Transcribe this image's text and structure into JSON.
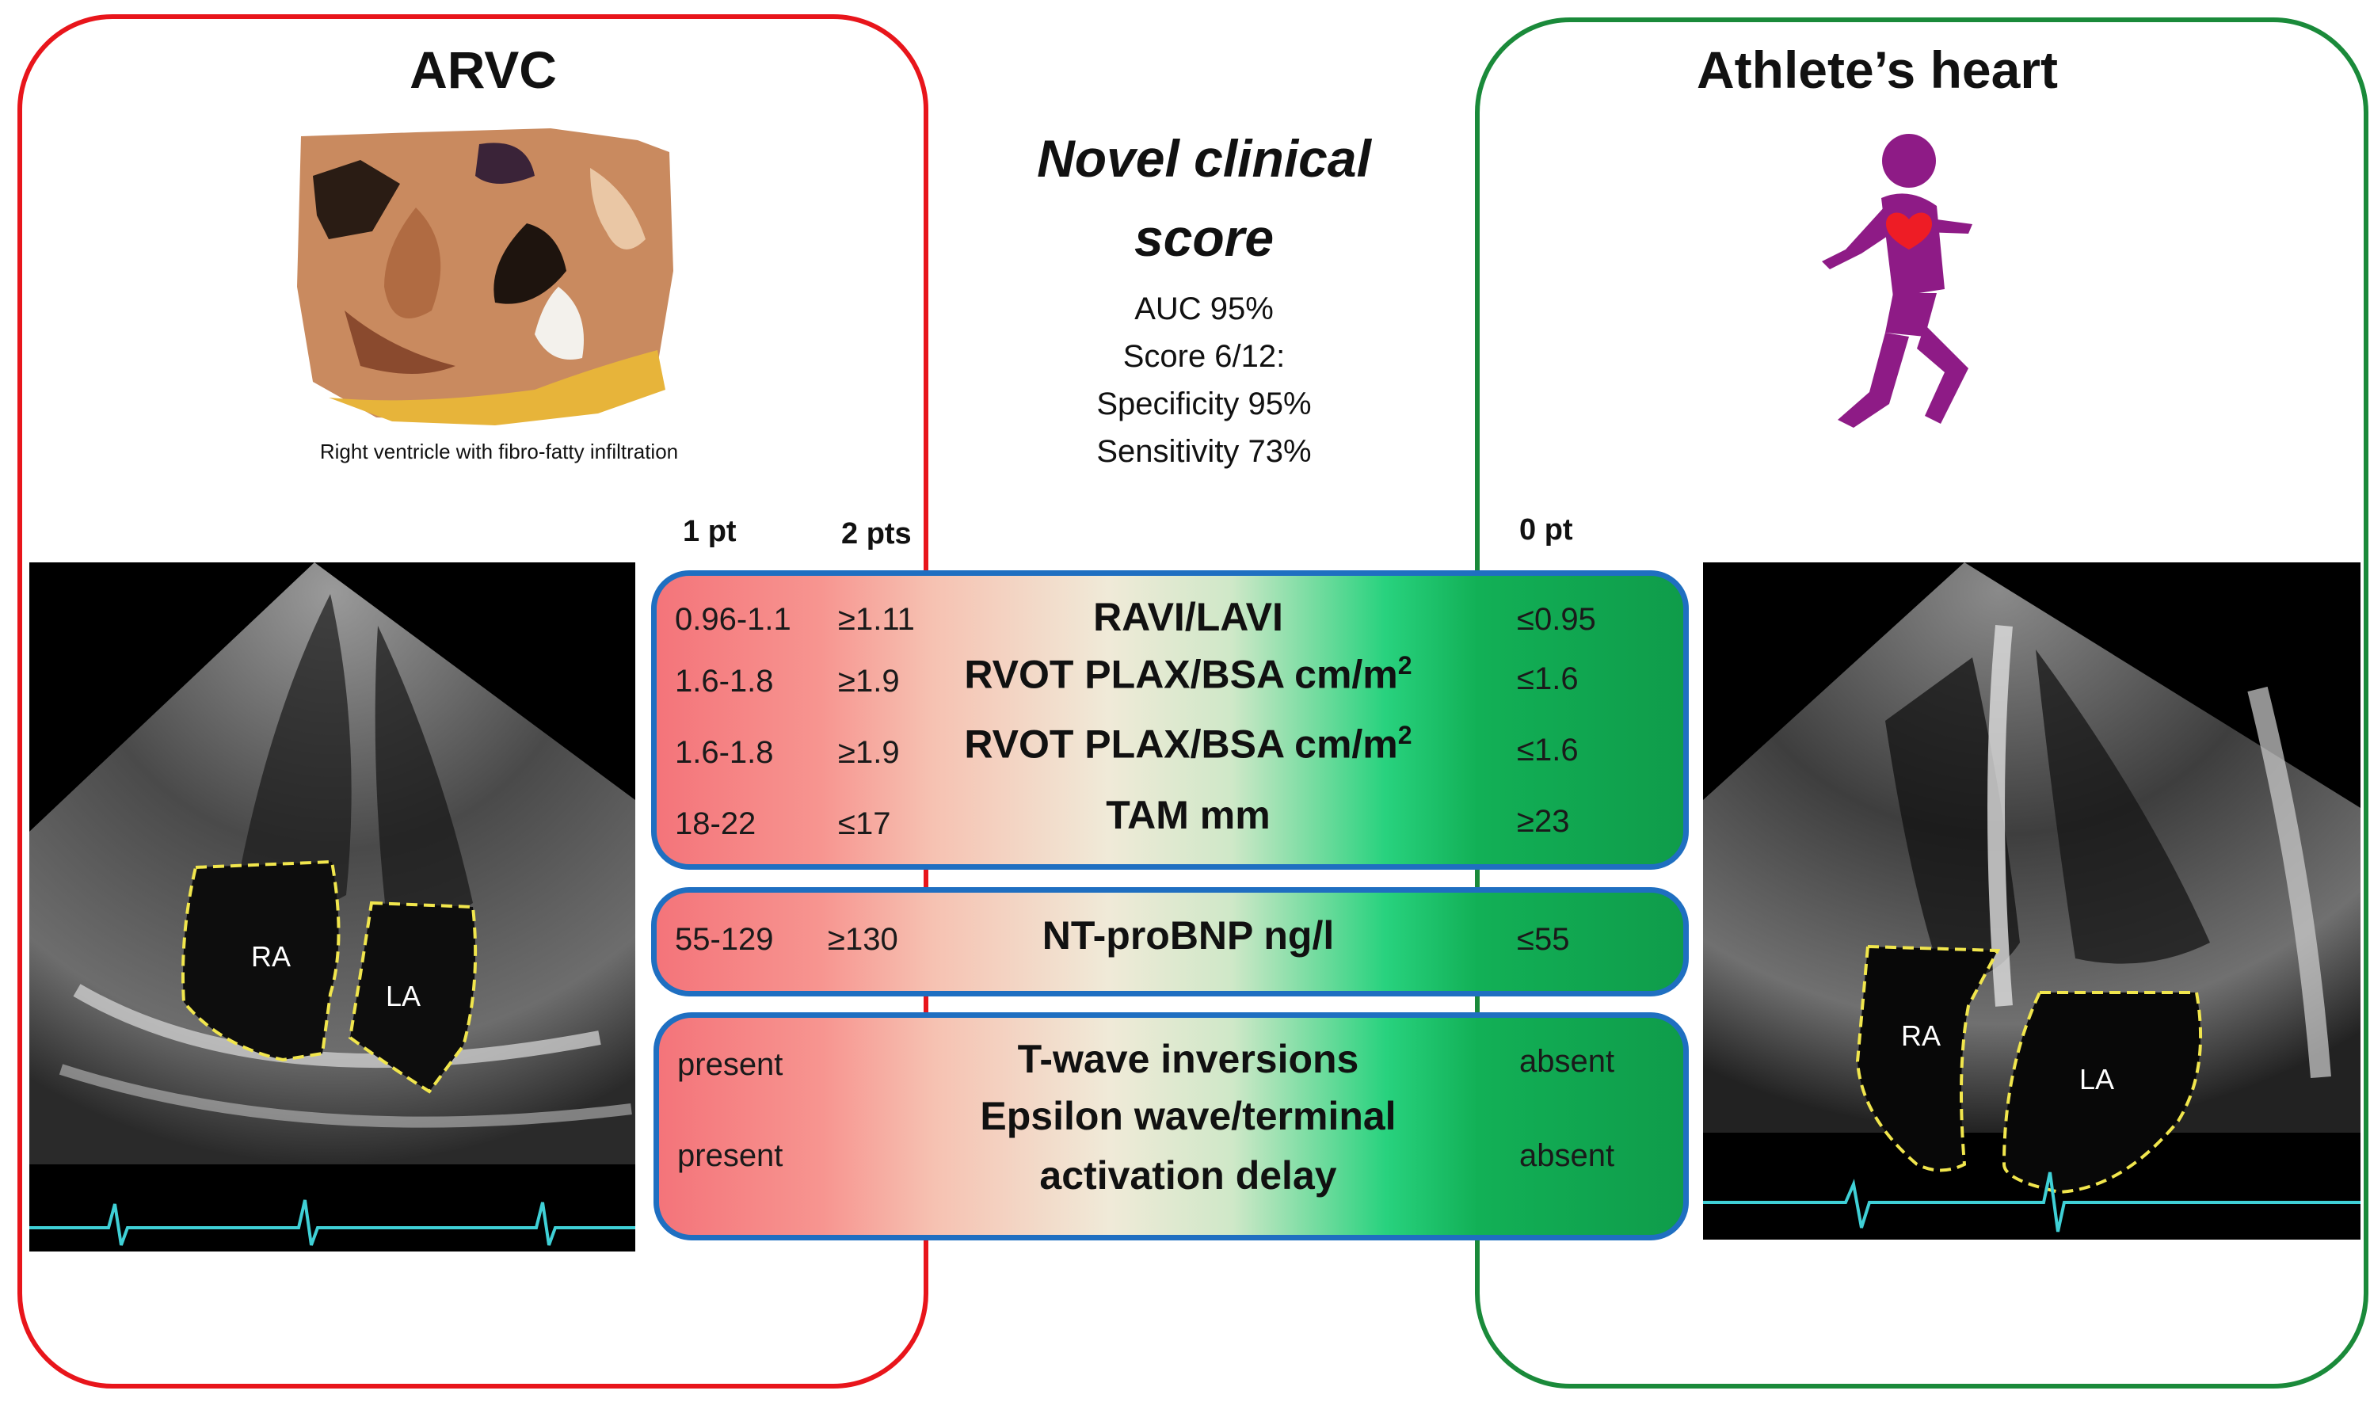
{
  "left_panel": {
    "title": "ARVC",
    "photo_caption": "Right ventricle with fibro-fatty infiltration",
    "echo_labels": [
      "RA",
      "LA"
    ]
  },
  "center": {
    "title_line1": "Novel clinical",
    "title_line2": "score",
    "stats": [
      "AUC 95%",
      "Score 6/12:",
      "Specificity 95%",
      "Sensitivity 73%"
    ]
  },
  "right_panel": {
    "title": "Athlete’s heart",
    "echo_labels": [
      "RA",
      "LA"
    ]
  },
  "column_headers": {
    "one_pt": "1 pt",
    "two_pts": "2 pts",
    "zero_pt": "0 pt"
  },
  "criteria": [
    {
      "one": "0.96-1.1",
      "two": "≥1.11",
      "label": "RAVI/LAVI",
      "zero": "≤0.95"
    },
    {
      "one": "1.6-1.8",
      "two": "≥1.9",
      "label": "RVOT PLAX/BSA cm/m",
      "label_sup": "2",
      "zero": "≤1.6"
    },
    {
      "one": "1.6-1.8",
      "two": "≥1.9",
      "label": "RVOT PLAX/BSA cm/m",
      "label_sup": "2",
      "zero": "≤1.6"
    },
    {
      "one": "18-22",
      "two": "≤17",
      "label": "TAM mm",
      "zero": "≥23"
    },
    {
      "one": "55-129",
      "two": "≥130",
      "label": "NT-proBNP ng/l",
      "zero": "≤55"
    },
    {
      "one": "present",
      "label": "T-wave inversions",
      "zero": "absent"
    },
    {
      "one": "present",
      "label": "Epsilon wave/terminal",
      "label_line2": "activation delay",
      "zero": "absent"
    }
  ],
  "colors": {
    "arvc": "#e8151b",
    "athlete": "#1a8a3a",
    "bar_border": "#1f6fc1",
    "runner": "#8e1b86"
  }
}
